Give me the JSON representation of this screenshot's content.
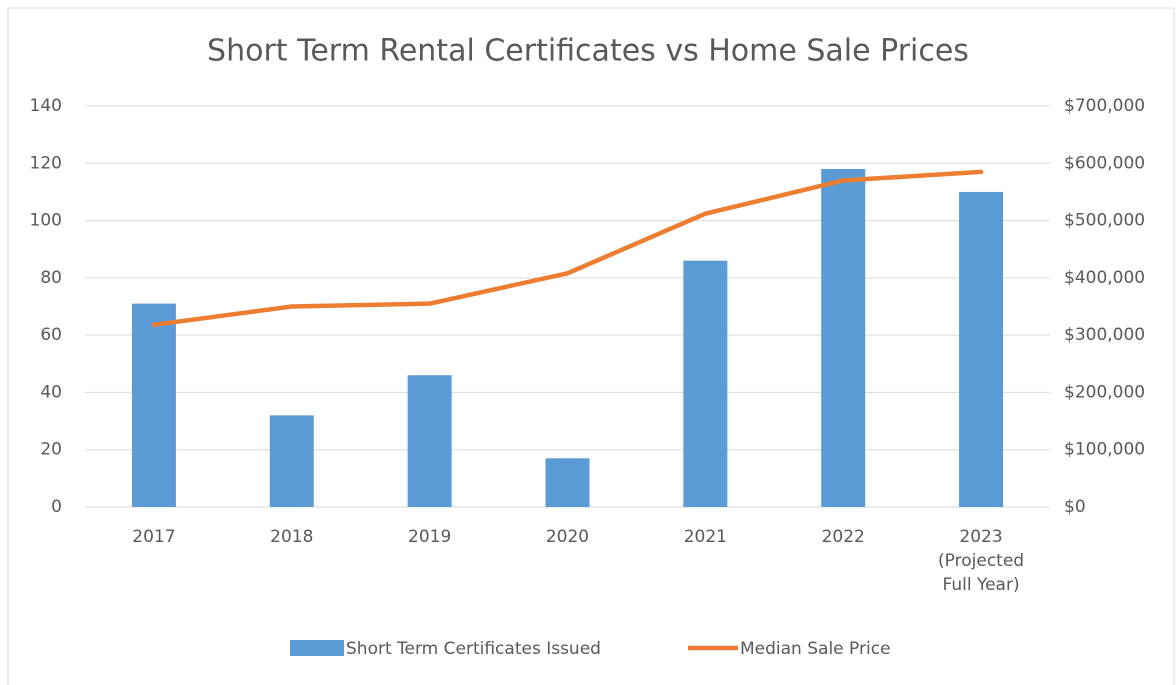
{
  "chart_data": {
    "type": "bar_line",
    "title": "Short Term Rental Certificates vs Home Sale Prices",
    "categories": [
      "2017",
      "2018",
      "2019",
      "2020",
      "2021",
      "2022",
      "2023 (Projected Full Year)"
    ],
    "series": [
      {
        "name": "Short Term Certificates Issued",
        "type": "bar",
        "color": "#5b9bd5",
        "values": [
          71,
          32,
          46,
          17,
          86,
          118,
          110
        ]
      },
      {
        "name": "Median Sale Price",
        "type": "line",
        "axis": "y2",
        "color": "#ed7d31",
        "values": [
          318000,
          350000,
          355000,
          408000,
          512000,
          570000,
          585000
        ]
      }
    ],
    "ylim": [
      0,
      140
    ],
    "yticks": [
      0,
      20,
      40,
      60,
      80,
      100,
      120,
      140
    ],
    "y2lim": [
      0,
      700000
    ],
    "y2ticks": [
      {
        "value": 0,
        "label": "$0"
      },
      {
        "value": 100000,
        "label": "$100,000"
      },
      {
        "value": 200000,
        "label": "$200,000"
      },
      {
        "value": 300000,
        "label": "$300,000"
      },
      {
        "value": 400000,
        "label": "$400,000"
      },
      {
        "value": 500000,
        "label": "$500,000"
      },
      {
        "value": 600000,
        "label": "$600,000"
      },
      {
        "value": 700000,
        "label": "$700,000"
      }
    ],
    "grid": true,
    "legend": "bottom"
  }
}
